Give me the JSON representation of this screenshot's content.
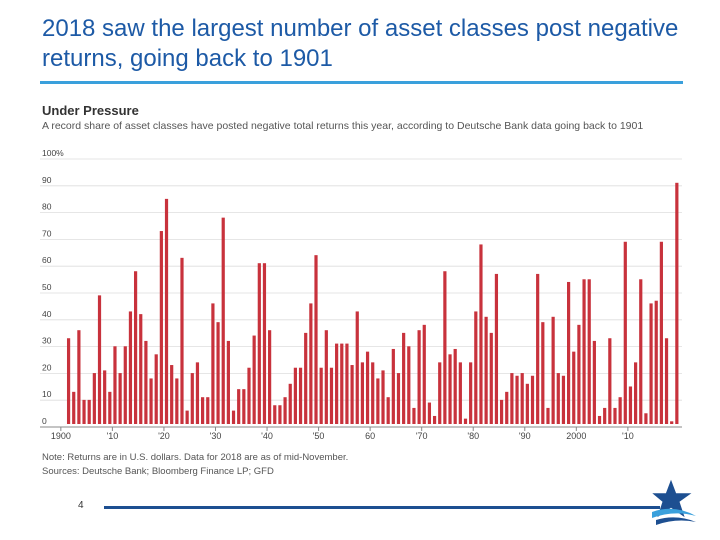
{
  "slide": {
    "title": "2018 saw the largest number of asset classes post negative returns, going back to 1901",
    "page_number": "4"
  },
  "chart_data": {
    "type": "bar",
    "title": "Under Pressure",
    "subtitle": "A record share of asset classes have posted negative total returns this year, according to Deutsche Bank data going back to 1901",
    "xlabel": "",
    "ylabel": "",
    "ylim": [
      0,
      100
    ],
    "y_ticks": [
      "0",
      "10",
      "20",
      "30",
      "40",
      "50",
      "60",
      "70",
      "80",
      "90",
      "100%"
    ],
    "x_tick_labels": [
      {
        "year": 1900,
        "label": "1900"
      },
      {
        "year": 1910,
        "label": "'10"
      },
      {
        "year": 1920,
        "label": "'20"
      },
      {
        "year": 1930,
        "label": "'30"
      },
      {
        "year": 1940,
        "label": "'40"
      },
      {
        "year": 1950,
        "label": "'50"
      },
      {
        "year": 1960,
        "label": "60"
      },
      {
        "year": 1970,
        "label": "'70"
      },
      {
        "year": 1980,
        "label": "'80"
      },
      {
        "year": 1990,
        "label": "'90"
      },
      {
        "year": 2000,
        "label": "2000"
      },
      {
        "year": 2010,
        "label": "'10"
      }
    ],
    "grid": true,
    "bar_color": "#c8323c",
    "start_year": 1901,
    "values": [
      32,
      12,
      35,
      9,
      9,
      19,
      48,
      20,
      12,
      29,
      19,
      29,
      42,
      57,
      41,
      31,
      17,
      26,
      72,
      84,
      22,
      17,
      62,
      5,
      19,
      23,
      10,
      10,
      45,
      38,
      77,
      31,
      5,
      13,
      13,
      21,
      33,
      60,
      60,
      35,
      7,
      7,
      10,
      15,
      21,
      21,
      34,
      45,
      63,
      21,
      35,
      21,
      30,
      30,
      30,
      22,
      42,
      23,
      27,
      23,
      17,
      20,
      10,
      28,
      19,
      34,
      29,
      6,
      35,
      37,
      8,
      3,
      23,
      57,
      26,
      28,
      23,
      2,
      23,
      42,
      67,
      40,
      34,
      56,
      9,
      12,
      19,
      18,
      19,
      15,
      18,
      56,
      38,
      6,
      40,
      19,
      18,
      53,
      27,
      37,
      54,
      54,
      31,
      3,
      6,
      32,
      6,
      10,
      68,
      14,
      23,
      54,
      4,
      45,
      46,
      68,
      32,
      1,
      90
    ]
  },
  "notes": {
    "line1": "Note: Returns are in U.S. dollars. Data for 2018 are as of mid-November.",
    "line2": "Sources: Deutsche Bank; Bloomberg Finance LP; GFD"
  }
}
